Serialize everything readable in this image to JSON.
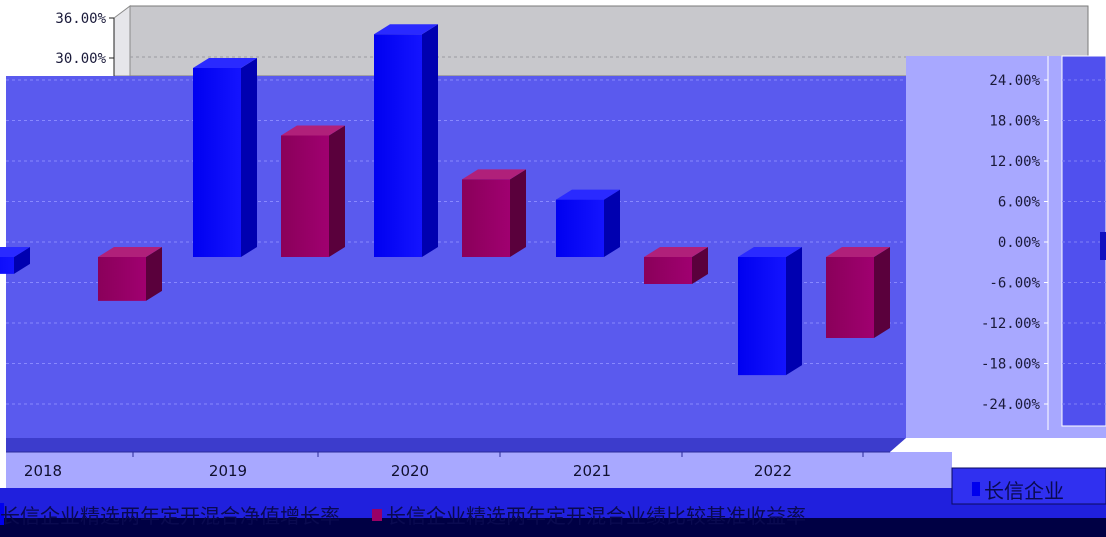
{
  "chart_data": {
    "type": "bar",
    "categories": [
      "2018",
      "2019",
      "2020",
      "2021",
      "2022"
    ],
    "series": [
      {
        "name": "长信企业精选两年定开混合净值增长率",
        "color": "#0000ee",
        "values": [
          -2.5,
          28.0,
          33.0,
          8.5,
          -17.5
        ]
      },
      {
        "name": "长信企业精选两年定开混合业绩比较基准收益率",
        "color": "#990066",
        "values": [
          -6.5,
          18.0,
          11.5,
          -4.0,
          -12.0
        ]
      }
    ],
    "left_axis": {
      "ticks": [
        "36.00%",
        "30.00%"
      ]
    },
    "right_axis": {
      "ticks": [
        "24.00%",
        "18.00%",
        "12.00%",
        "6.00%",
        "0.00%",
        "-6.00%",
        "-12.00%",
        "-18.00%",
        "-24.00%"
      ]
    },
    "ylim": [
      -30,
      36
    ],
    "grid": true,
    "legend": "bottom",
    "legend_right_fragment": "长信企业"
  }
}
